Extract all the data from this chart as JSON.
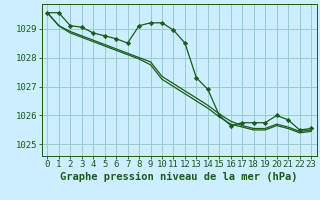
{
  "title": "Graphe pression niveau de la mer (hPa)",
  "bg_color": "#cceeff",
  "grid_color": "#99cccc",
  "line_color": "#1a5c1a",
  "xlim": [
    -0.5,
    23.5
  ],
  "ylim": [
    1024.6,
    1029.85
  ],
  "yticks": [
    1025,
    1026,
    1027,
    1028,
    1029
  ],
  "xticks": [
    0,
    1,
    2,
    3,
    4,
    5,
    6,
    7,
    8,
    9,
    10,
    11,
    12,
    13,
    14,
    15,
    16,
    17,
    18,
    19,
    20,
    21,
    22,
    23
  ],
  "series_with_markers": [
    1029.55,
    1029.55,
    1029.1,
    1029.05,
    1028.85,
    1028.75,
    1028.65,
    1028.5,
    1029.1,
    1029.2,
    1029.2,
    1028.95,
    1028.5,
    1027.3,
    1026.9,
    1026.0,
    1025.65,
    1025.75,
    1025.75,
    1025.75,
    1026.0,
    1025.85,
    1025.5,
    1025.55
  ],
  "series_line1": [
    1029.55,
    1029.1,
    1028.9,
    1028.75,
    1028.6,
    1028.45,
    1028.3,
    1028.15,
    1028.0,
    1027.85,
    1027.35,
    1027.1,
    1026.85,
    1026.6,
    1026.35,
    1026.05,
    1025.8,
    1025.65,
    1025.55,
    1025.55,
    1025.7,
    1025.6,
    1025.45,
    1025.5
  ],
  "series_line2": [
    1029.55,
    1029.1,
    1028.85,
    1028.7,
    1028.55,
    1028.4,
    1028.25,
    1028.1,
    1027.95,
    1027.75,
    1027.25,
    1027.0,
    1026.75,
    1026.5,
    1026.25,
    1025.95,
    1025.7,
    1025.6,
    1025.5,
    1025.5,
    1025.65,
    1025.55,
    1025.4,
    1025.45
  ],
  "tick_fontsize": 6.5,
  "xlabel_fontsize": 7.5
}
